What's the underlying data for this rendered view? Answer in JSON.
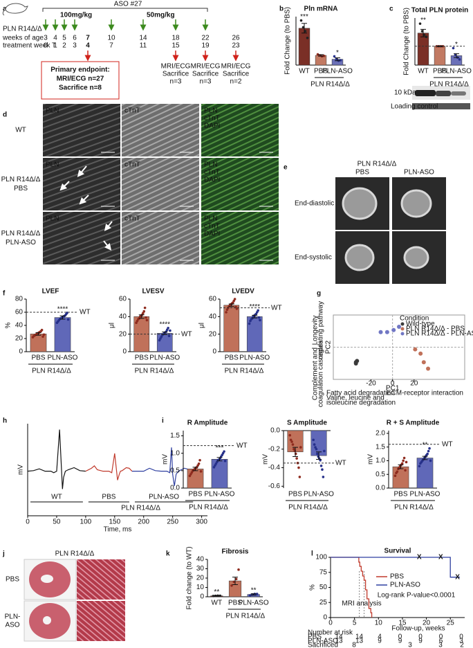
{
  "panel_labels": [
    "a",
    "b",
    "c",
    "d",
    "e",
    "f",
    "g",
    "h",
    "i",
    "j",
    "k",
    "l"
  ],
  "timeline": {
    "title": "ASO #27",
    "dose_high": "100mg/kg",
    "dose_low": "50mg/kg",
    "model": "PLN R14Δ/Δ",
    "weeks_label": "weeks of age",
    "weeks": [
      3,
      4,
      5,
      6,
      7,
      10,
      14,
      18,
      22,
      26
    ],
    "treatment_label": "treatment week T",
    "treatment_weeks": [
      0,
      1,
      2,
      3,
      4,
      7,
      11,
      15,
      19,
      23
    ],
    "primary": {
      "title": "Primary endpoint:",
      "lines": [
        "MRI/ECG n=27",
        "Sacrifice n=8"
      ]
    },
    "endpoints": [
      {
        "lines": [
          "MRI/ECG",
          "Sacrifice",
          "n=3"
        ]
      },
      {
        "lines": [
          "MRI/ECG",
          "Sacrifice",
          "n=3"
        ]
      },
      {
        "lines": [
          "MRI/ECG",
          "Sacrifice",
          "n=2"
        ]
      }
    ]
  },
  "immunostaining": {
    "rows": [
      {
        "label": [
          "WT"
        ],
        "tiles": [
          [
            "PLN"
          ],
          [
            "cTnT"
          ],
          [
            "PLN",
            "cTnT",
            "DAPI"
          ]
        ]
      },
      {
        "label": [
          "PLN R14Δ/Δ",
          "PBS"
        ],
        "tiles": [
          [
            "PLN"
          ],
          [
            "cTnT"
          ],
          [
            "PLN",
            "cTnT",
            "DAPI"
          ]
        ]
      },
      {
        "label": [
          "PLN R14Δ/Δ",
          "PLN-ASO"
        ],
        "tiles": [
          [
            "PLN"
          ],
          [
            "cTnT"
          ],
          [
            "PLN",
            "cTnT",
            "DAPI"
          ]
        ]
      }
    ]
  },
  "mri": {
    "title": "PLN R14Δ/Δ",
    "columns": [
      "PBS",
      "PLN-ASO"
    ],
    "rows": [
      "End-diastolic",
      "End-systolic"
    ]
  },
  "blot": {
    "marker": "10 kDa",
    "control": "Loading control"
  },
  "histology": {
    "title": "PLN R14Δ/Δ",
    "rows": [
      [
        "PBS"
      ],
      [
        "PLN-",
        "ASO"
      ]
    ]
  },
  "chart_data": [
    {
      "type": "bar",
      "title": "Pln mRNA",
      "ylabel": "Fold Change (to PBS)",
      "categories": [
        "WT",
        "PBS",
        "PLN-ASO"
      ],
      "values": [
        3.8,
        1.0,
        0.6
      ],
      "errors": [
        0.5,
        0.08,
        0.15
      ],
      "points": [
        [
          4.6,
          3.9,
          3.5,
          2.8
        ],
        [
          1.1,
          1.0,
          0.9,
          0.95
        ],
        [
          0.9,
          0.6,
          0.45,
          0.5
        ]
      ],
      "colors": [
        "#7a2f26",
        "#c27a63",
        "#6b70b8"
      ],
      "point_colors": [
        "#222",
        "#8e2b1e",
        "#26308a"
      ],
      "ylim": [
        0,
        5
      ],
      "group_label": "PLN R14Δ/Δ",
      "annotations": [
        {
          "category": "WT",
          "text": "***"
        },
        {
          "category": "PLN-ASO",
          "text": "*"
        }
      ]
    },
    {
      "type": "bar",
      "title": "Total PLN protein",
      "ylabel": "Fold Change (to PBS)",
      "categories": [
        "WT",
        "PBS",
        "PLN-ASO"
      ],
      "values": [
        1.7,
        1.0,
        0.5
      ],
      "errors": [
        0.2,
        0.02,
        0.1
      ],
      "points": [
        [
          2.2,
          1.8,
          1.6,
          1.5
        ],
        [
          1,
          1,
          1,
          1
        ],
        [
          0.9,
          0.55,
          0.4,
          0.3
        ]
      ],
      "colors": [
        "#7a2f26",
        "#c27a63",
        "#6b70b8"
      ],
      "point_colors": [
        "#222",
        "#8e2b1e",
        "#26308a"
      ],
      "ylim": [
        0,
        2.5
      ],
      "reference_line": {
        "value": 1
      },
      "group_label": "PLN R14Δ/Δ",
      "annotations": [
        {
          "category": "WT",
          "text": "**"
        },
        {
          "category": "PLN-ASO",
          "text": "*"
        }
      ]
    },
    {
      "type": "bar",
      "title": "LVEF",
      "ylabel": "%",
      "categories": [
        "PBS",
        "PLN-ASO"
      ],
      "values": [
        27,
        52
      ],
      "errors": [
        2,
        2.5
      ],
      "points": [
        [
          22,
          24,
          25,
          26,
          27,
          28,
          29,
          30,
          31,
          33,
          23,
          26
        ],
        [
          44,
          46,
          48,
          50,
          51,
          52,
          53,
          54,
          55,
          57,
          59,
          49
        ]
      ],
      "colors": [
        "#c0715a",
        "#6068b8"
      ],
      "point_colors": [
        "#8e2b1e",
        "#26308a"
      ],
      "ylim": [
        0,
        80
      ],
      "yticks": [
        0,
        20,
        40,
        60,
        80
      ],
      "reference_line": {
        "value": 60,
        "label": "WT"
      },
      "group_label": "PLN R14Δ/Δ",
      "annotations": [
        {
          "category": "PLN-ASO",
          "text": "****"
        }
      ]
    },
    {
      "type": "bar",
      "title": "LVESV",
      "ylabel": "μl",
      "categories": [
        "PBS",
        "PLN-ASO"
      ],
      "values": [
        40,
        21
      ],
      "errors": [
        2,
        1.5
      ],
      "points": [
        [
          33,
          35,
          37,
          38,
          40,
          41,
          42,
          44,
          46,
          50,
          39,
          36
        ],
        [
          13,
          15,
          17,
          19,
          20,
          21,
          22,
          23,
          25,
          27,
          18,
          24
        ]
      ],
      "colors": [
        "#c0715a",
        "#6068b8"
      ],
      "point_colors": [
        "#8e2b1e",
        "#26308a"
      ],
      "ylim": [
        0,
        60
      ],
      "yticks": [
        0,
        20,
        40,
        60
      ],
      "reference_line": {
        "value": 20,
        "label": "WT"
      },
      "group_label": "PLN R14Δ/Δ",
      "annotations": [
        {
          "category": "PLN-ASO",
          "text": "****"
        }
      ]
    },
    {
      "type": "bar",
      "title": "LVEDV",
      "ylabel": "μl",
      "categories": [
        "PBS",
        "PLN-ASO"
      ],
      "values": [
        53,
        40
      ],
      "errors": [
        1.5,
        1.5
      ],
      "points": [
        [
          45,
          48,
          50,
          52,
          53,
          54,
          55,
          56,
          58,
          60,
          51,
          49
        ],
        [
          32,
          35,
          37,
          38,
          40,
          41,
          42,
          43,
          45,
          47,
          39,
          36
        ]
      ],
      "colors": [
        "#c0715a",
        "#6068b8"
      ],
      "point_colors": [
        "#8e2b1e",
        "#26308a"
      ],
      "ylim": [
        0,
        60
      ],
      "yticks": [
        0,
        20,
        40,
        60
      ],
      "reference_line": {
        "value": 50,
        "label": "WT"
      },
      "group_label": "PLN R14Δ/Δ",
      "annotations": [
        {
          "category": "PLN-ASO",
          "text": "****"
        }
      ]
    },
    {
      "type": "scatter",
      "xlabel": "PC1",
      "ylabel": "PC2",
      "xlim": [
        -55,
        67
      ],
      "xticks": [
        -20,
        0,
        20
      ],
      "ylim": [
        -15,
        15
      ],
      "legend_title": "Condition",
      "series": [
        {
          "name": "Wild-type",
          "color": "#3a3a3a",
          "x": [
            -34,
            -34,
            -33
          ],
          "values": [
            -7,
            -7.6,
            -6.4
          ]
        },
        {
          "name": "PLN R14Δ/Δ - PBS",
          "color": "#c0715a",
          "x": [
            21,
            26,
            29,
            33
          ],
          "values": [
            -1,
            -3,
            -7,
            -10
          ]
        },
        {
          "name": "PLN R14Δ/Δ - PLN-ASO",
          "color": "#7177c4",
          "x": [
            -11,
            -5,
            1,
            6
          ],
          "values": [
            7,
            7,
            8,
            9.5
          ]
        }
      ],
      "y_annotations": [
        [
          "Longevity",
          "regulating pathway"
        ],
        [
          "Complement and",
          "coagulation cascades"
        ]
      ],
      "x_annotations": [
        [
          "Fatty acid degradation"
        ],
        [
          "Valine, leucine and",
          "isoleucine degradation"
        ],
        [
          "ECM-receptor interaction"
        ]
      ]
    },
    {
      "type": "line",
      "xlabel": "Time, ms",
      "ylabel": "mV",
      "xlim": [
        0,
        310
      ],
      "xticks": [
        0,
        50,
        100,
        150,
        200,
        250,
        300
      ],
      "ylim": [
        -1.5,
        1.6
      ],
      "group_label": "PLN R14Δ/Δ",
      "series": [
        {
          "name": "WT",
          "color": "#111111",
          "x": [
            0,
            10,
            20,
            30,
            40,
            45,
            50,
            55,
            58,
            60,
            62,
            65,
            70,
            80,
            90,
            100
          ],
          "values": [
            0,
            0.02,
            0.08,
            0,
            0,
            -0.05,
            0,
            1.4,
            0.2,
            -0.6,
            -0.2,
            0,
            0.05,
            0.12,
            0.02,
            0
          ]
        },
        {
          "name": "PBS",
          "color": "#c0392b",
          "x": [
            100,
            110,
            115,
            120,
            130,
            140,
            145,
            150,
            155,
            158,
            160,
            163,
            170,
            175,
            180
          ],
          "values": [
            0,
            0.1,
            0.18,
            0.05,
            0,
            0,
            -0.05,
            0.6,
            -0.3,
            -0.1,
            0,
            0.02,
            0.12,
            0.1,
            0
          ]
        },
        {
          "name": "PLN-ASO",
          "color": "#2e3fa0",
          "x": [
            180,
            200,
            210,
            220,
            230,
            240,
            245,
            248,
            250,
            253,
            256,
            260,
            270,
            280,
            290
          ],
          "values": [
            0,
            0,
            0.1,
            0.02,
            0,
            0,
            -0.05,
            0.8,
            -0.1,
            -0.5,
            -0.1,
            0,
            0.1,
            0.05,
            0
          ]
        }
      ]
    },
    {
      "type": "bar",
      "title": "R Amplitude",
      "ylabel": "mV",
      "categories": [
        "PBS",
        "PLN-ASO"
      ],
      "values": [
        0.55,
        0.83
      ],
      "errors": [
        0.05,
        0.05
      ],
      "points": [
        [
          0.35,
          0.4,
          0.45,
          0.5,
          0.52,
          0.55,
          0.58,
          0.6,
          0.65,
          0.7,
          0.8,
          0.48
        ],
        [
          0.6,
          0.65,
          0.7,
          0.75,
          0.8,
          0.82,
          0.85,
          0.9,
          0.95,
          1.0,
          1.05,
          0.78
        ]
      ],
      "colors": [
        "#c0715a",
        "#6068b8"
      ],
      "point_colors": [
        "#8e2b1e",
        "#26308a"
      ],
      "ylim": [
        0,
        1.65
      ],
      "yticks": [
        {
          "value": 0,
          "label": "0.0"
        },
        0.5,
        {
          "value": 1,
          "label": "1.0"
        },
        1.5
      ],
      "reference_line": {
        "value": 1.22,
        "label": "WT"
      },
      "group_label": "PLN R14Δ/Δ",
      "annotations": [
        {
          "category": "PLN-ASO",
          "text": "***"
        }
      ]
    },
    {
      "type": "bar",
      "title": "S Amplitude",
      "ylabel": "mV",
      "categories": [
        "PBS",
        "PLN-ASO"
      ],
      "values": [
        -0.23,
        -0.27
      ],
      "errors": [
        0.05,
        0.04
      ],
      "points": [
        [
          -0.05,
          -0.1,
          -0.12,
          -0.15,
          -0.2,
          -0.22,
          -0.25,
          -0.3,
          -0.35,
          -0.4,
          -0.5,
          -0.18
        ],
        [
          -0.1,
          -0.15,
          -0.18,
          -0.2,
          -0.25,
          -0.28,
          -0.3,
          -0.32,
          -0.38,
          -0.42,
          -0.5,
          -0.22
        ]
      ],
      "colors": [
        "#c0715a",
        "#6068b8"
      ],
      "point_colors": [
        "#8e2b1e",
        "#26308a"
      ],
      "ylim": [
        -0.62,
        0
      ],
      "yticks": [
        {
          "value": 0,
          "label": "0.0"
        },
        -0.2,
        -0.4,
        -0.6
      ],
      "reference_line": {
        "value": -0.35,
        "label": "WT"
      },
      "group_label": "PLN R14Δ/Δ"
    },
    {
      "type": "bar",
      "title": "R + S Amplitude",
      "ylabel": "mV",
      "categories": [
        "PBS",
        "PLN-ASO"
      ],
      "values": [
        0.78,
        1.1
      ],
      "errors": [
        0.07,
        0.06
      ],
      "points": [
        [
          0.45,
          0.55,
          0.6,
          0.7,
          0.75,
          0.8,
          0.85,
          0.9,
          1.0,
          1.1,
          0.65,
          0.95
        ],
        [
          0.8,
          0.9,
          0.95,
          1.0,
          1.05,
          1.1,
          1.15,
          1.2,
          1.25,
          1.35,
          1.45,
          1.0
        ]
      ],
      "colors": [
        "#c0715a",
        "#6068b8"
      ],
      "point_colors": [
        "#8e2b1e",
        "#26308a"
      ],
      "ylim": [
        0,
        2.1
      ],
      "yticks": [
        {
          "value": 0,
          "label": "0.0"
        },
        0.5,
        {
          "value": 1,
          "label": "1.0"
        },
        1.5,
        {
          "value": 2,
          "label": "2.0"
        }
      ],
      "reference_line": {
        "value": 1.6,
        "label": "WT"
      },
      "group_label": "PLN R14Δ/Δ",
      "annotations": [
        {
          "category": "PLN-ASO",
          "text": "**"
        }
      ]
    },
    {
      "type": "bar",
      "title": "Fibrosis",
      "ylabel": "Fold change (to WT)",
      "categories": [
        "WT",
        "PBS",
        "PLN-ASO"
      ],
      "values": [
        1.0,
        17,
        2.5
      ],
      "errors": [
        0.3,
        4,
        0.7
      ],
      "points": [
        [
          0.8,
          1,
          1.2,
          1.1
        ],
        [
          12,
          16,
          19,
          29
        ],
        [
          1.5,
          2.5,
          3,
          3
        ]
      ],
      "colors": [
        "#7a2f26",
        "#c0715a",
        "#6068b8"
      ],
      "point_colors": [
        "#222",
        "#8e2b1e",
        "#26308a"
      ],
      "ylim": [
        0,
        40
      ],
      "yticks": [
        0,
        10,
        20,
        30,
        40
      ],
      "group_label": "PLN R14Δ/Δ",
      "annotations": [
        {
          "category": "WT",
          "text": "**"
        },
        {
          "category": "PLN-ASO",
          "text": "**"
        }
      ]
    },
    {
      "type": "step",
      "title": "Survival",
      "xlabel": "Follow-up, weeks",
      "ylabel": "%",
      "xlim": [
        0,
        28
      ],
      "xticks": [
        0,
        5,
        10,
        15,
        20,
        25
      ],
      "ylim": [
        0,
        100
      ],
      "yticks": [
        0,
        25,
        50,
        75,
        100
      ],
      "series": [
        {
          "name": "PBS",
          "color": "#c0392b",
          "x": [
            0,
            5.9,
            6.1,
            6.4,
            6.7,
            7,
            7.3,
            7.6,
            8,
            8.4,
            8.6
          ],
          "values": [
            100,
            92,
            85,
            77,
            69,
            62,
            46,
            31,
            15,
            8,
            0
          ]
        },
        {
          "name": "PLN-ASO",
          "color": "#2e3fa0",
          "x": [
            0,
            25,
            27
          ],
          "values": [
            100,
            67,
            67
          ]
        }
      ],
      "censor_symbol": "X",
      "censor_marks": {
        "x": [
          18.5,
          23,
          26.5
        ],
        "values": [
          100,
          100,
          67
        ]
      },
      "mri_analysis_weeks": [
        6,
        7
      ],
      "mri_label": "MRI analysis",
      "test_label": "Log-rank P-value<0.0001",
      "risk_table": {
        "title": "Number at risk",
        "rows": [
          {
            "label": "PBS",
            "values": [
              14,
              14,
              4,
              0,
              0,
              0,
              0
            ]
          },
          {
            "label": "PLN-ASO",
            "values": [
              13,
              13,
              9,
              9,
              9,
              6,
              3
            ]
          },
          {
            "label": "Sacrificed",
            "values": [
              8,
              3,
              3,
              2
            ]
          }
        ]
      }
    }
  ]
}
